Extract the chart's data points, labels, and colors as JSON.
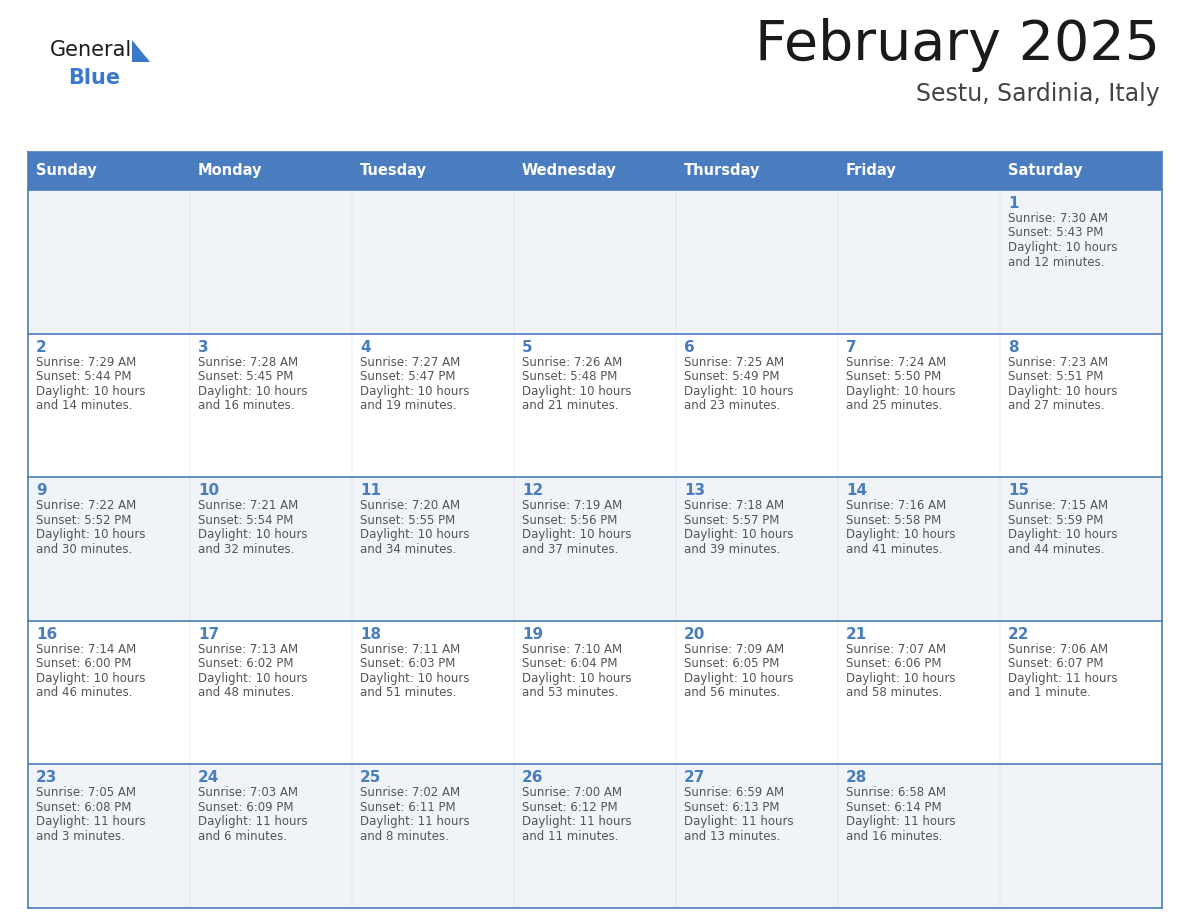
{
  "title": "February 2025",
  "subtitle": "Sestu, Sardinia, Italy",
  "days_of_week": [
    "Sunday",
    "Monday",
    "Tuesday",
    "Wednesday",
    "Thursday",
    "Friday",
    "Saturday"
  ],
  "header_bg": "#4a7dbf",
  "header_text_color": "#FFFFFF",
  "cell_bg_light": "#f0f4f8",
  "cell_bg_white": "#FFFFFF",
  "day_number_color": "#4a7dbf",
  "info_text_color": "#555555",
  "border_color": "#4a7dbf",
  "title_color": "#1a1a1a",
  "subtitle_color": "#444444",
  "logo_general_color": "#1a1a1a",
  "logo_blue_color": "#3a78c9",
  "calendar_data": [
    {
      "day": 1,
      "col": 6,
      "row": 0,
      "sunrise": "7:30 AM",
      "sunset": "5:43 PM",
      "daylight_h": "10 hours",
      "daylight_m": "and 12 minutes."
    },
    {
      "day": 2,
      "col": 0,
      "row": 1,
      "sunrise": "7:29 AM",
      "sunset": "5:44 PM",
      "daylight_h": "10 hours",
      "daylight_m": "and 14 minutes."
    },
    {
      "day": 3,
      "col": 1,
      "row": 1,
      "sunrise": "7:28 AM",
      "sunset": "5:45 PM",
      "daylight_h": "10 hours",
      "daylight_m": "and 16 minutes."
    },
    {
      "day": 4,
      "col": 2,
      "row": 1,
      "sunrise": "7:27 AM",
      "sunset": "5:47 PM",
      "daylight_h": "10 hours",
      "daylight_m": "and 19 minutes."
    },
    {
      "day": 5,
      "col": 3,
      "row": 1,
      "sunrise": "7:26 AM",
      "sunset": "5:48 PM",
      "daylight_h": "10 hours",
      "daylight_m": "and 21 minutes."
    },
    {
      "day": 6,
      "col": 4,
      "row": 1,
      "sunrise": "7:25 AM",
      "sunset": "5:49 PM",
      "daylight_h": "10 hours",
      "daylight_m": "and 23 minutes."
    },
    {
      "day": 7,
      "col": 5,
      "row": 1,
      "sunrise": "7:24 AM",
      "sunset": "5:50 PM",
      "daylight_h": "10 hours",
      "daylight_m": "and 25 minutes."
    },
    {
      "day": 8,
      "col": 6,
      "row": 1,
      "sunrise": "7:23 AM",
      "sunset": "5:51 PM",
      "daylight_h": "10 hours",
      "daylight_m": "and 27 minutes."
    },
    {
      "day": 9,
      "col": 0,
      "row": 2,
      "sunrise": "7:22 AM",
      "sunset": "5:52 PM",
      "daylight_h": "10 hours",
      "daylight_m": "and 30 minutes."
    },
    {
      "day": 10,
      "col": 1,
      "row": 2,
      "sunrise": "7:21 AM",
      "sunset": "5:54 PM",
      "daylight_h": "10 hours",
      "daylight_m": "and 32 minutes."
    },
    {
      "day": 11,
      "col": 2,
      "row": 2,
      "sunrise": "7:20 AM",
      "sunset": "5:55 PM",
      "daylight_h": "10 hours",
      "daylight_m": "and 34 minutes."
    },
    {
      "day": 12,
      "col": 3,
      "row": 2,
      "sunrise": "7:19 AM",
      "sunset": "5:56 PM",
      "daylight_h": "10 hours",
      "daylight_m": "and 37 minutes."
    },
    {
      "day": 13,
      "col": 4,
      "row": 2,
      "sunrise": "7:18 AM",
      "sunset": "5:57 PM",
      "daylight_h": "10 hours",
      "daylight_m": "and 39 minutes."
    },
    {
      "day": 14,
      "col": 5,
      "row": 2,
      "sunrise": "7:16 AM",
      "sunset": "5:58 PM",
      "daylight_h": "10 hours",
      "daylight_m": "and 41 minutes."
    },
    {
      "day": 15,
      "col": 6,
      "row": 2,
      "sunrise": "7:15 AM",
      "sunset": "5:59 PM",
      "daylight_h": "10 hours",
      "daylight_m": "and 44 minutes."
    },
    {
      "day": 16,
      "col": 0,
      "row": 3,
      "sunrise": "7:14 AM",
      "sunset": "6:00 PM",
      "daylight_h": "10 hours",
      "daylight_m": "and 46 minutes."
    },
    {
      "day": 17,
      "col": 1,
      "row": 3,
      "sunrise": "7:13 AM",
      "sunset": "6:02 PM",
      "daylight_h": "10 hours",
      "daylight_m": "and 48 minutes."
    },
    {
      "day": 18,
      "col": 2,
      "row": 3,
      "sunrise": "7:11 AM",
      "sunset": "6:03 PM",
      "daylight_h": "10 hours",
      "daylight_m": "and 51 minutes."
    },
    {
      "day": 19,
      "col": 3,
      "row": 3,
      "sunrise": "7:10 AM",
      "sunset": "6:04 PM",
      "daylight_h": "10 hours",
      "daylight_m": "and 53 minutes."
    },
    {
      "day": 20,
      "col": 4,
      "row": 3,
      "sunrise": "7:09 AM",
      "sunset": "6:05 PM",
      "daylight_h": "10 hours",
      "daylight_m": "and 56 minutes."
    },
    {
      "day": 21,
      "col": 5,
      "row": 3,
      "sunrise": "7:07 AM",
      "sunset": "6:06 PM",
      "daylight_h": "10 hours",
      "daylight_m": "and 58 minutes."
    },
    {
      "day": 22,
      "col": 6,
      "row": 3,
      "sunrise": "7:06 AM",
      "sunset": "6:07 PM",
      "daylight_h": "11 hours",
      "daylight_m": "and 1 minute."
    },
    {
      "day": 23,
      "col": 0,
      "row": 4,
      "sunrise": "7:05 AM",
      "sunset": "6:08 PM",
      "daylight_h": "11 hours",
      "daylight_m": "and 3 minutes."
    },
    {
      "day": 24,
      "col": 1,
      "row": 4,
      "sunrise": "7:03 AM",
      "sunset": "6:09 PM",
      "daylight_h": "11 hours",
      "daylight_m": "and 6 minutes."
    },
    {
      "day": 25,
      "col": 2,
      "row": 4,
      "sunrise": "7:02 AM",
      "sunset": "6:11 PM",
      "daylight_h": "11 hours",
      "daylight_m": "and 8 minutes."
    },
    {
      "day": 26,
      "col": 3,
      "row": 4,
      "sunrise": "7:00 AM",
      "sunset": "6:12 PM",
      "daylight_h": "11 hours",
      "daylight_m": "and 11 minutes."
    },
    {
      "day": 27,
      "col": 4,
      "row": 4,
      "sunrise": "6:59 AM",
      "sunset": "6:13 PM",
      "daylight_h": "11 hours",
      "daylight_m": "and 13 minutes."
    },
    {
      "day": 28,
      "col": 5,
      "row": 4,
      "sunrise": "6:58 AM",
      "sunset": "6:14 PM",
      "daylight_h": "11 hours",
      "daylight_m": "and 16 minutes."
    }
  ],
  "num_rows": 5,
  "num_cols": 7,
  "fig_width": 11.88,
  "fig_height": 9.18
}
